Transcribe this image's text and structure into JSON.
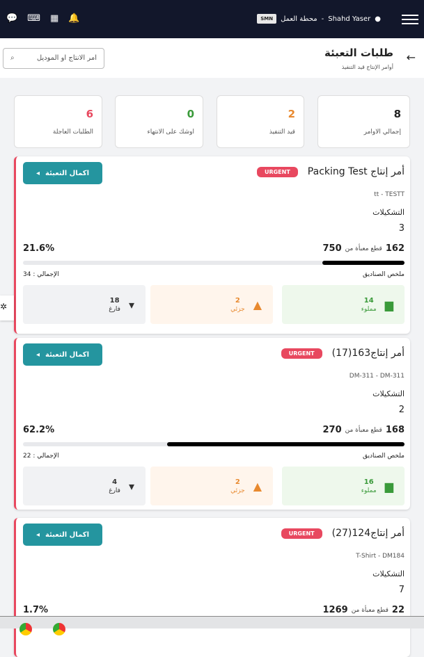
{
  "header": {
    "station_label": "محطة العمل",
    "station_code": "SMN",
    "user": "Shahd Yaser",
    "sep": "-"
  },
  "page": {
    "title": "طلبات التعبئة",
    "subtitle": "أوامر الإنتاج قيد التنفيذ",
    "search_placeholder": "امر الانتاج او الموديل"
  },
  "stats": [
    {
      "value": "8",
      "label": "إجمالي الاوامر",
      "color": "#222222"
    },
    {
      "value": "2",
      "label": "قيد التنفيذ",
      "color": "#e8892f"
    },
    {
      "value": "0",
      "label": "اوشك على الانتهاء",
      "color": "#3a9a3a"
    },
    {
      "value": "6",
      "label": "الطلبات العاجلة",
      "color": "#e8485f"
    }
  ],
  "labels": {
    "complete": "اكمال التعبئة",
    "urgent": "URGENT",
    "variants": "التشكيلات",
    "packed_of": "قطع معبأة من",
    "summary": "ملخص الصناديق",
    "full": "مملوء",
    "partial": "جزئي",
    "empty": "فارغ"
  },
  "orders": [
    {
      "title": "أمر إنتاج Packing Test",
      "model": "tt - TESTT",
      "variants": "3",
      "packed": "162",
      "total": "750",
      "percent": "21.6%",
      "progress": 21.6,
      "boxes_total": "الإجمالي : 34",
      "full": "14",
      "partial": "2",
      "empty": "18"
    },
    {
      "title": "أمر إنتاج163(17)",
      "model": "DM-311 - DM-311",
      "variants": "2",
      "packed": "168",
      "total": "270",
      "percent": "62.2%",
      "progress": 62.2,
      "boxes_total": "الإجمالي : 22",
      "full": "16",
      "partial": "2",
      "empty": "4"
    },
    {
      "title": "أمر إنتاج124(27)",
      "model": "T-Shirt - DM184",
      "variants": "7",
      "packed": "22",
      "total": "1269",
      "percent": "1.7%",
      "progress": 1.7
    }
  ]
}
